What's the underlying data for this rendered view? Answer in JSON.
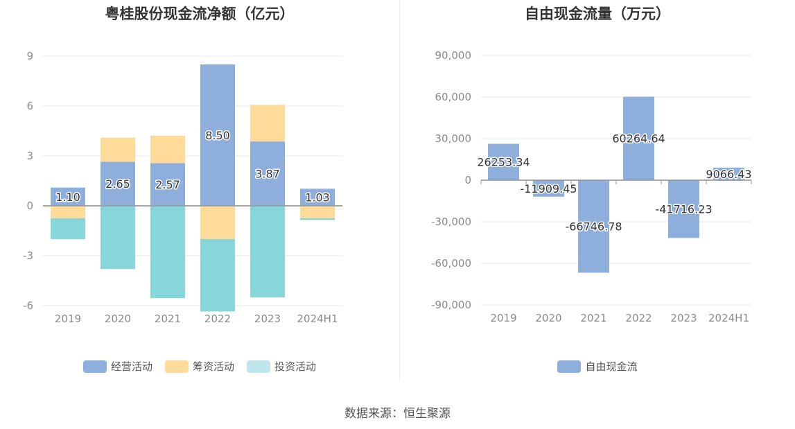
{
  "source": "数据来源：恒生聚源",
  "chart_data": [
    {
      "type": "bar",
      "stacked": true,
      "title": "粤桂股份现金流净额（亿元）",
      "categories": [
        "2019",
        "2020",
        "2021",
        "2022",
        "2023",
        "2024H1"
      ],
      "ylim": [
        -6,
        9
      ],
      "yticks": [
        9,
        6,
        3,
        0,
        -3,
        -6
      ],
      "ytick_labels": [
        "9",
        "6",
        "3",
        "0",
        "-3",
        "-6"
      ],
      "grid": true,
      "legend": "bottom-center",
      "series": [
        {
          "name": "经营活动",
          "color": "#8eafdc",
          "values": [
            1.1,
            2.65,
            2.57,
            8.5,
            3.87,
            1.03
          ],
          "labels": [
            "1.10",
            "2.65",
            "2.57",
            "8.50",
            "3.87",
            "1.03"
          ]
        },
        {
          "name": "筹资活动",
          "color": "#ffdb9a",
          "values": [
            -0.75,
            1.45,
            1.65,
            -2.0,
            2.2,
            -0.75
          ]
        },
        {
          "name": "投资活动",
          "color": "#86d6da",
          "legend_color": "#bfe7eb",
          "values": [
            -1.25,
            -3.8,
            -5.55,
            -4.35,
            -5.5,
            -0.1
          ]
        }
      ]
    },
    {
      "type": "bar",
      "title": "自由现金流量（万元）",
      "categories": [
        "2019",
        "2020",
        "2021",
        "2022",
        "2023",
        "2024H1"
      ],
      "ylim": [
        -90000,
        90000
      ],
      "yticks": [
        90000,
        60000,
        30000,
        0,
        -30000,
        -60000,
        -90000
      ],
      "ytick_labels": [
        "90,000",
        "60,000",
        "30,000",
        "0",
        "-30,000",
        "-60,000",
        "-90,000"
      ],
      "grid": true,
      "legend": "bottom-center",
      "series": [
        {
          "name": "自由现金流",
          "color": "#8eafdc",
          "values": [
            26253.34,
            -11909.45,
            -66746.78,
            60264.64,
            -41716.23,
            9066.43
          ],
          "labels": [
            "26253.34",
            "-11909.45",
            "-66746.78",
            "60264.64",
            "-41716.23",
            "9066.43"
          ]
        }
      ]
    }
  ]
}
